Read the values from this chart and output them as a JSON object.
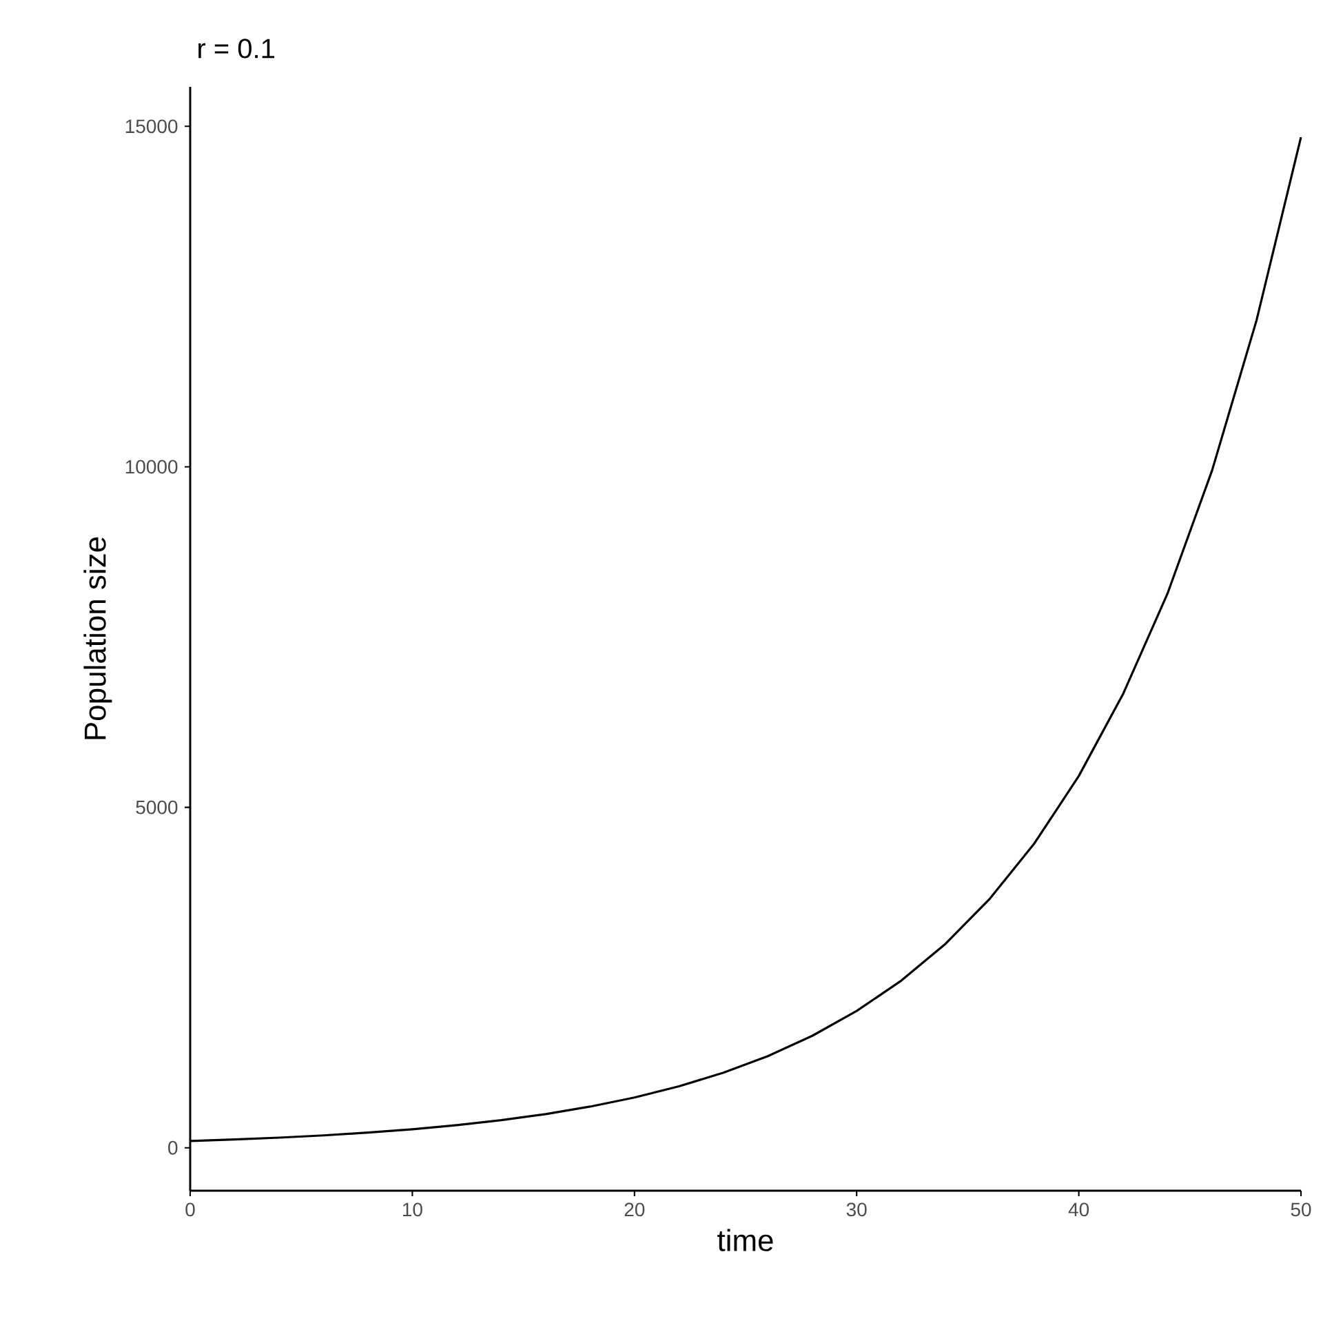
{
  "chart_data": {
    "type": "line",
    "title": "r = 0.1",
    "xlabel": "time",
    "ylabel": "Population size",
    "x": [
      0,
      2,
      4,
      6,
      8,
      10,
      12,
      14,
      16,
      18,
      20,
      22,
      24,
      26,
      28,
      30,
      32,
      34,
      36,
      38,
      40,
      42,
      44,
      46,
      48,
      50
    ],
    "series": [
      {
        "color": "#000000",
        "values": [
          100,
          122,
          149,
          182,
          223,
          272,
          332,
          406,
          495,
          605,
          739,
          903,
          1102,
          1346,
          1644,
          2009,
          2453,
          2996,
          3660,
          4470,
          5460,
          6669,
          8145,
          9948,
          12151,
          14841
        ]
      }
    ],
    "xlim": [
      0,
      50
    ],
    "ylim": [
      -630,
      15580
    ],
    "xticks": [
      0,
      10,
      20,
      30,
      40,
      50
    ],
    "yticks": [
      0,
      5000,
      10000,
      15000
    ]
  }
}
